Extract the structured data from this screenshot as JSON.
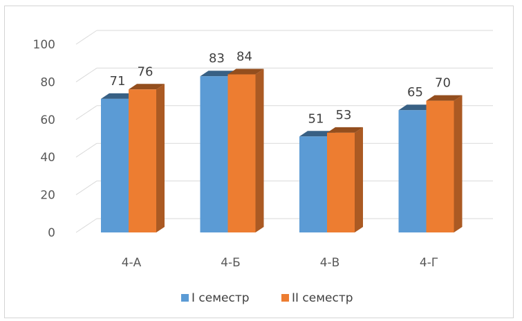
{
  "header": {
    "partial_title": ""
  },
  "chart_data": {
    "type": "bar",
    "title": "",
    "xlabel": "",
    "ylabel": "",
    "categories": [
      "4-А",
      "4-Б",
      "4-В",
      "4-Г"
    ],
    "series": [
      {
        "name": "І семестр",
        "values": [
          71,
          83,
          51,
          65
        ],
        "color": "#5b9bd5"
      },
      {
        "name": "ІІ семестр",
        "values": [
          76,
          84,
          53,
          70
        ],
        "color": "#ed7d31"
      }
    ],
    "ylim": [
      0,
      100
    ],
    "yticks": [
      0,
      20,
      40,
      60,
      80,
      100
    ],
    "grid": true,
    "legend": "bottom",
    "style": "3d-clustered-column"
  }
}
